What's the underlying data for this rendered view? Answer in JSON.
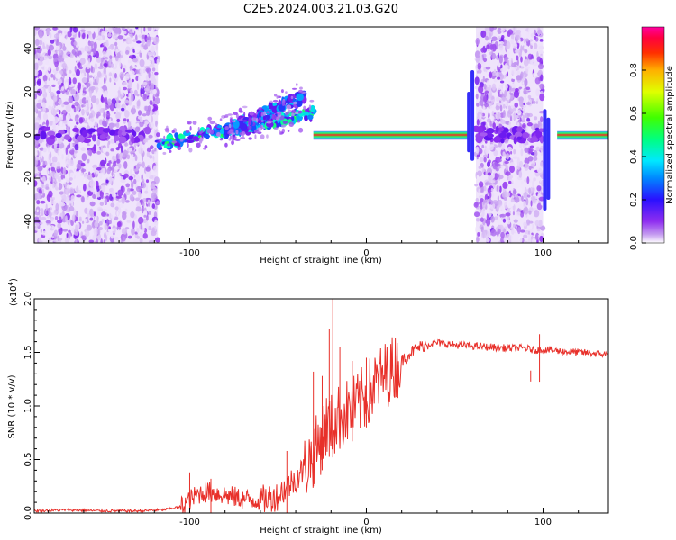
{
  "title": "C2E5.2024.003.21.03.G20",
  "colors": {
    "snr_line": "#e8302a",
    "colormap": [
      "#ffffff",
      "#c49af0",
      "#8f2ef0",
      "#5a10f0",
      "#1a40ff",
      "#00b8ff",
      "#00ffd0",
      "#20ff40",
      "#b0ff00",
      "#ffe000",
      "#ff6000",
      "#ff0030",
      "#ff00a0"
    ]
  },
  "chart_data": [
    {
      "type": "heatmap",
      "xlabel": "Height of straight line (km)",
      "ylabel": "Frequency (Hz)",
      "xlim": [
        -188,
        137
      ],
      "ylim": [
        -50,
        50
      ],
      "xticks": [
        -100,
        0,
        100
      ],
      "yticks": [
        -40,
        -20,
        0,
        20,
        40
      ],
      "colorbar": {
        "label": "Normalized spectral amplitude",
        "range": [
          0.0,
          1.0
        ],
        "ticks": [
          "0.0",
          "0.2",
          "0.4",
          "0.6",
          "0.8"
        ]
      },
      "features": [
        {
          "region": "broadband noise",
          "x": [
            -188,
            -118
          ],
          "y": [
            -50,
            50
          ],
          "amplitude": 0.15
        },
        {
          "region": "rising echo",
          "x": [
            -118,
            -30
          ],
          "y_start": -4,
          "y_end": 10,
          "amplitude": 0.45
        },
        {
          "region": "doppler branch",
          "x": [
            -80,
            -35
          ],
          "y_start": 2,
          "y_end": 18,
          "amplitude": 0.35
        },
        {
          "region": "steady echo",
          "x": [
            -30,
            58
          ],
          "y": [
            0,
            0
          ],
          "amplitude": 0.95
        },
        {
          "region": "broadband noise",
          "x": [
            62,
            100
          ],
          "y": [
            -50,
            50
          ],
          "amplitude": 0.15
        },
        {
          "region": "steady echo",
          "x": [
            108,
            137
          ],
          "y": [
            0,
            0
          ],
          "amplitude": 0.95
        }
      ]
    },
    {
      "type": "line",
      "xlabel": "Height of straight line (km)",
      "ylabel": "SNR (10 * v/v)",
      "yscale_label": "(x10",
      "yscale_exp": "4",
      "yscale_close": ")",
      "xlim": [
        -188,
        137
      ],
      "ylim": [
        0.0,
        2.0
      ],
      "xticks": [
        -100,
        0,
        100
      ],
      "yticks": [
        "0.0",
        "0.5",
        "1.0",
        "1.5",
        "2.0"
      ],
      "series": [
        {
          "x": [
            -188,
            -170,
            -150,
            -130,
            -115,
            -105,
            -100,
            -95,
            -90,
            -80,
            -70,
            -60,
            -50,
            -45,
            -40,
            -35,
            -30,
            -25,
            -22,
            -20,
            -15,
            -10,
            -5,
            0,
            5,
            10,
            15,
            20,
            25,
            30,
            35,
            40,
            50,
            60,
            70,
            80,
            90,
            95,
            100,
            110,
            120,
            130,
            137
          ],
          "values": [
            0.02,
            0.03,
            0.02,
            0.02,
            0.03,
            0.06,
            0.12,
            0.18,
            0.2,
            0.17,
            0.13,
            0.12,
            0.16,
            0.25,
            0.32,
            0.42,
            0.55,
            0.7,
            0.85,
            0.8,
            0.9,
            0.95,
            1.0,
            1.1,
            1.2,
            1.28,
            1.35,
            1.42,
            1.5,
            1.55,
            1.58,
            1.59,
            1.57,
            1.56,
            1.55,
            1.54,
            1.54,
            1.52,
            1.53,
            1.51,
            1.5,
            1.49,
            1.48
          ],
          "spikes": [
            {
              "x": -100,
              "y": 0.38
            },
            {
              "x": -88,
              "y": 0.32
            },
            {
              "x": -45,
              "y": 0.58
            },
            {
              "x": -30,
              "y": 1.32
            },
            {
              "x": -25,
              "y": 1.28
            },
            {
              "x": -21,
              "y": 1.72
            },
            {
              "x": -19,
              "y": 2.0
            },
            {
              "x": -15,
              "y": 1.55
            },
            {
              "x": -8,
              "y": 1.42
            },
            {
              "x": 0,
              "y": 1.45
            },
            {
              "x": 93,
              "y": 1.33
            },
            {
              "x": 98,
              "y": 1.67
            }
          ]
        }
      ]
    }
  ]
}
